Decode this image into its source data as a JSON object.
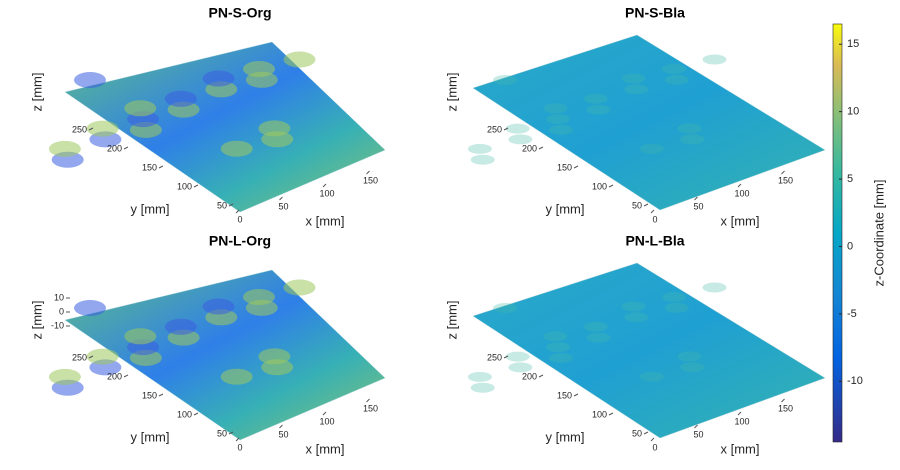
{
  "chart_data": [
    {
      "type": "surface",
      "title": "PN-S-Org",
      "xlabel": "x [mm]",
      "ylabel": "y [mm]",
      "zlabel": "z [mm]",
      "xticks": [
        0,
        50,
        100,
        150
      ],
      "yticks": [
        50,
        100,
        150,
        200,
        250
      ]
    },
    {
      "type": "surface",
      "title": "PN-S-Bla",
      "xlabel": "x [mm]",
      "ylabel": "y [mm]",
      "zlabel": "z [mm]",
      "xticks": [
        0,
        50,
        100,
        150
      ],
      "yticks": [
        50,
        100,
        150,
        200,
        250
      ]
    },
    {
      "type": "surface",
      "title": "PN-L-Org",
      "xlabel": "x [mm]",
      "ylabel": "y [mm]",
      "zlabel": "z [mm]",
      "xticks": [
        0,
        50,
        100,
        150
      ],
      "yticks": [
        50,
        100,
        150,
        200,
        250
      ],
      "zticks": [
        -10,
        0,
        10
      ]
    },
    {
      "type": "surface",
      "title": "PN-L-Bla",
      "xlabel": "x [mm]",
      "ylabel": "y [mm]",
      "zlabel": "z [mm]",
      "xticks": [
        0,
        50,
        100,
        150
      ],
      "yticks": [
        50,
        100,
        150,
        200,
        250
      ]
    },
    {
      "type": "colorbar",
      "label": "z-Coordinate [mm]",
      "ylim": [
        -14.5,
        16.5
      ],
      "yticks": [
        -10,
        -5,
        0,
        5,
        10,
        15
      ]
    }
  ]
}
